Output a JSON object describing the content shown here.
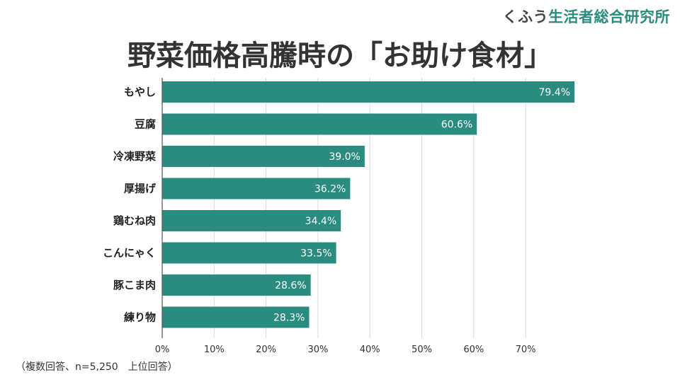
{
  "header": {
    "brand_kana": "くふう",
    "brand_org": "生活者総合研究所",
    "title": "野菜価格高騰時の「お助け食材」"
  },
  "footer": {
    "note": "（複数回答、n=5,250　上位回答）"
  },
  "colors": {
    "bar": "#2a8c7f",
    "brand": "#2a8c7f",
    "grid": "#d9d9d9"
  },
  "chart_data": {
    "type": "bar",
    "orientation": "horizontal",
    "categories": [
      "もやし",
      "豆腐",
      "冷凍野菜",
      "厚揚げ",
      "鶏むね肉",
      "こんにゃく",
      "豚こま肉",
      "練り物"
    ],
    "values": [
      79.4,
      60.6,
      39.0,
      36.2,
      34.4,
      33.5,
      28.6,
      28.3
    ],
    "value_labels": [
      "79.4%",
      "60.6%",
      "39.0%",
      "36.2%",
      "34.4%",
      "33.5%",
      "28.6%",
      "28.3%"
    ],
    "x_ticks": [
      0,
      10,
      20,
      30,
      40,
      50,
      60,
      70
    ],
    "x_tick_labels": [
      "0%",
      "10%",
      "20%",
      "30%",
      "40%",
      "50%",
      "60%",
      "70%"
    ],
    "xlim": [
      0,
      80
    ],
    "title": "野菜価格高騰時の「お助け食材」",
    "xlabel": "",
    "ylabel": "",
    "grid": true,
    "legend": "none"
  }
}
